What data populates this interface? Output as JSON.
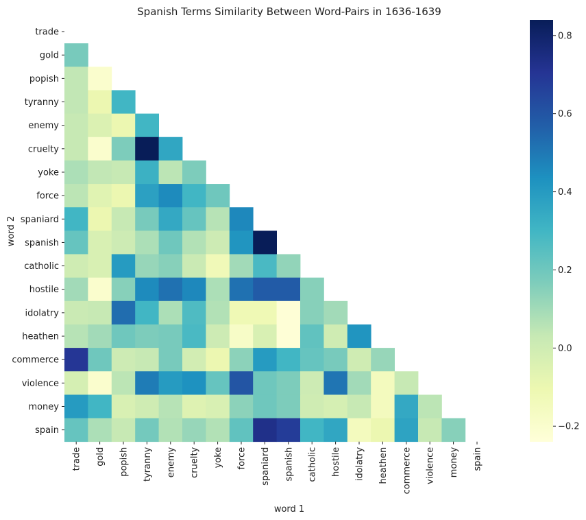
{
  "chart_data": {
    "type": "heatmap",
    "title": "Spanish Terms Similarity Between Word-Pairs in 1636-1639",
    "xlabel": "word 1",
    "ylabel": "word 2",
    "labels": [
      "trade",
      "gold",
      "popish",
      "tyranny",
      "enemy",
      "cruelty",
      "yoke",
      "force",
      "spaniard",
      "spanish",
      "catholic",
      "hostile",
      "idolatry",
      "heathen",
      "commerce",
      "violence",
      "money",
      "spain"
    ],
    "matrix": [
      [
        null,
        null,
        null,
        null,
        null,
        null,
        null,
        null,
        null,
        null,
        null,
        null,
        null,
        null,
        null,
        null,
        null,
        null
      ],
      [
        0.18,
        null,
        null,
        null,
        null,
        null,
        null,
        null,
        null,
        null,
        null,
        null,
        null,
        null,
        null,
        null,
        null,
        null
      ],
      [
        0.04,
        -0.2,
        null,
        null,
        null,
        null,
        null,
        null,
        null,
        null,
        null,
        null,
        null,
        null,
        null,
        null,
        null,
        null
      ],
      [
        0.04,
        -0.1,
        0.3,
        null,
        null,
        null,
        null,
        null,
        null,
        null,
        null,
        null,
        null,
        null,
        null,
        null,
        null,
        null
      ],
      [
        0.03,
        -0.04,
        -0.1,
        0.3,
        null,
        null,
        null,
        null,
        null,
        null,
        null,
        null,
        null,
        null,
        null,
        null,
        null,
        null
      ],
      [
        0.03,
        -0.2,
        0.17,
        0.84,
        0.36,
        null,
        null,
        null,
        null,
        null,
        null,
        null,
        null,
        null,
        null,
        null,
        null,
        null
      ],
      [
        0.08,
        0.04,
        0.03,
        0.32,
        0.05,
        0.17,
        null,
        null,
        null,
        null,
        null,
        null,
        null,
        null,
        null,
        null,
        null,
        null
      ],
      [
        0.05,
        -0.06,
        -0.1,
        0.38,
        0.45,
        0.3,
        0.2,
        null,
        null,
        null,
        null,
        null,
        null,
        null,
        null,
        null,
        null,
        null
      ],
      [
        0.3,
        -0.1,
        0.03,
        0.18,
        0.35,
        0.22,
        0.06,
        0.46,
        null,
        null,
        null,
        null,
        null,
        null,
        null,
        null,
        null,
        null
      ],
      [
        0.22,
        -0.03,
        0.01,
        0.08,
        0.2,
        0.07,
        0.01,
        0.42,
        0.84,
        null,
        null,
        null,
        null,
        null,
        null,
        null,
        null,
        null
      ],
      [
        0.0,
        -0.03,
        0.4,
        0.12,
        0.15,
        0.02,
        -0.13,
        0.1,
        0.28,
        0.13,
        null,
        null,
        null,
        null,
        null,
        null,
        null,
        null
      ],
      [
        0.1,
        -0.2,
        0.15,
        0.45,
        0.52,
        0.46,
        0.08,
        0.52,
        0.58,
        0.58,
        0.15,
        null,
        null,
        null,
        null,
        null,
        null,
        null
      ],
      [
        0.02,
        0.03,
        0.53,
        0.3,
        0.08,
        0.27,
        0.07,
        -0.12,
        -0.12,
        -0.23,
        0.15,
        0.1,
        null,
        null,
        null,
        null,
        null,
        null
      ],
      [
        0.06,
        0.1,
        0.2,
        0.17,
        0.18,
        0.28,
        0.01,
        -0.18,
        -0.03,
        -0.23,
        0.23,
        0.0,
        0.42,
        null,
        null,
        null,
        null,
        null
      ],
      [
        0.7,
        0.2,
        0.01,
        0.03,
        0.18,
        -0.01,
        -0.1,
        0.14,
        0.4,
        0.3,
        0.22,
        0.18,
        0.0,
        0.12,
        null,
        null,
        null,
        null
      ],
      [
        -0.02,
        -0.2,
        0.05,
        0.49,
        0.4,
        0.43,
        0.22,
        0.6,
        0.2,
        0.17,
        0.01,
        0.51,
        0.1,
        -0.15,
        0.03,
        null,
        null,
        null
      ],
      [
        0.4,
        0.3,
        -0.03,
        0.0,
        0.06,
        -0.05,
        -0.03,
        0.14,
        0.2,
        0.17,
        0.0,
        -0.02,
        0.03,
        -0.15,
        0.35,
        0.05,
        null,
        null
      ],
      [
        0.22,
        0.08,
        0.03,
        0.19,
        0.07,
        0.12,
        0.07,
        0.23,
        0.73,
        0.68,
        0.3,
        0.36,
        -0.15,
        -0.1,
        0.37,
        0.03,
        0.15,
        null
      ]
    ],
    "colorbar": {
      "colormap": "YlGnBu",
      "min": -0.24,
      "max": 0.84,
      "ticks": [
        -0.2,
        0.0,
        0.2,
        0.4,
        0.6,
        0.8
      ],
      "tick_labels": [
        "−0.2",
        "0.0",
        "0.2",
        "0.4",
        "0.6",
        "0.8"
      ]
    },
    "grid": false
  }
}
